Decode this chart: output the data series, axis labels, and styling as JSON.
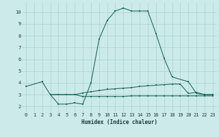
{
  "xlabel": "Humidex (Indice chaleur)",
  "bg_color": "#cdeaea",
  "grid_color": "#a8d0d0",
  "line_color": "#1a6b5a",
  "xlim": [
    -0.5,
    23.5
  ],
  "ylim": [
    1.5,
    10.8
  ],
  "yticks": [
    2,
    3,
    4,
    5,
    6,
    7,
    8,
    9,
    10
  ],
  "xticks": [
    0,
    1,
    2,
    3,
    4,
    5,
    6,
    7,
    8,
    9,
    10,
    11,
    12,
    13,
    14,
    15,
    16,
    17,
    18,
    19,
    20,
    21,
    22,
    23
  ],
  "series1_x": [
    0,
    2,
    3,
    4,
    5,
    6,
    7,
    8,
    9,
    10,
    11,
    12,
    13,
    14,
    15,
    16,
    17,
    18,
    20,
    21,
    22,
    23
  ],
  "series1_y": [
    3.7,
    4.1,
    3.0,
    2.2,
    2.2,
    2.3,
    2.2,
    4.0,
    7.7,
    9.3,
    10.1,
    10.35,
    10.1,
    10.1,
    10.1,
    8.2,
    6.1,
    4.5,
    4.1,
    3.1,
    3.0,
    3.0
  ],
  "series2_x": [
    3,
    4,
    5,
    6,
    7,
    8,
    9,
    10,
    11,
    12,
    13,
    14,
    15,
    16,
    17,
    18,
    19,
    20,
    21,
    22,
    23
  ],
  "series2_y": [
    3.0,
    3.0,
    3.0,
    3.0,
    3.15,
    3.25,
    3.35,
    3.45,
    3.5,
    3.55,
    3.6,
    3.7,
    3.75,
    3.8,
    3.85,
    3.9,
    3.9,
    3.1,
    3.2,
    3.0,
    3.0
  ],
  "series3_x": [
    3,
    4,
    5,
    6,
    7,
    8,
    9,
    10,
    11,
    12,
    13,
    14,
    15,
    16,
    17,
    18,
    19,
    20,
    21,
    22,
    23
  ],
  "series3_y": [
    3.0,
    3.0,
    3.0,
    3.0,
    2.85,
    2.85,
    2.85,
    2.85,
    2.85,
    2.85,
    2.9,
    2.9,
    2.9,
    2.9,
    2.9,
    2.9,
    2.9,
    2.9,
    2.9,
    2.9,
    2.9
  ]
}
